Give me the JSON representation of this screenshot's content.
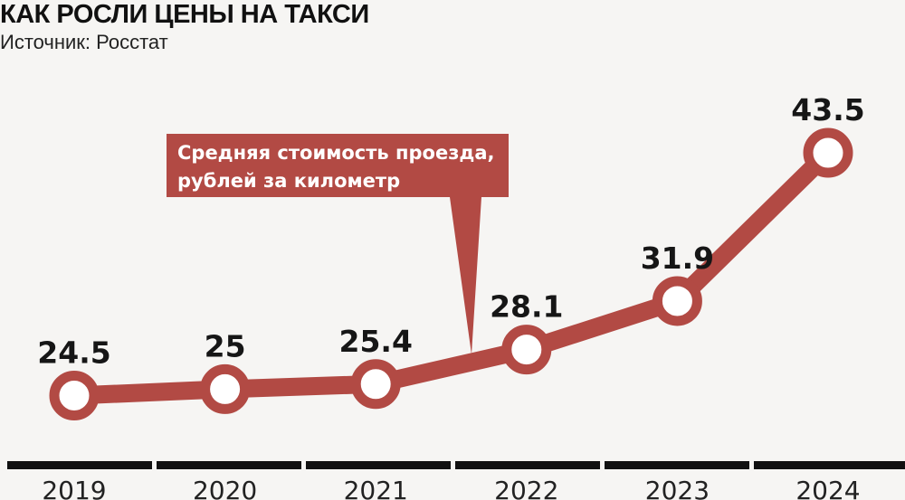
{
  "chart_data": {
    "type": "line",
    "title": "КАК РОСЛИ ЦЕНЫ НА ТАКСИ",
    "subtitle": "Источник: Росстат",
    "annotation": [
      "Средняя стоимость проезда,",
      "рублей за километр"
    ],
    "categories": [
      "2019",
      "2020",
      "2021",
      "2022",
      "2023",
      "2024"
    ],
    "values": [
      24.5,
      25,
      25.4,
      28.1,
      31.9,
      43.5
    ],
    "data_labels": [
      "24.5",
      "25",
      "25.4",
      "28.1",
      "31.9",
      "43.5"
    ],
    "grid": false,
    "colors": {
      "line": "#b24a44",
      "marker_fill": "#ffffff",
      "axis": "#111111"
    }
  }
}
